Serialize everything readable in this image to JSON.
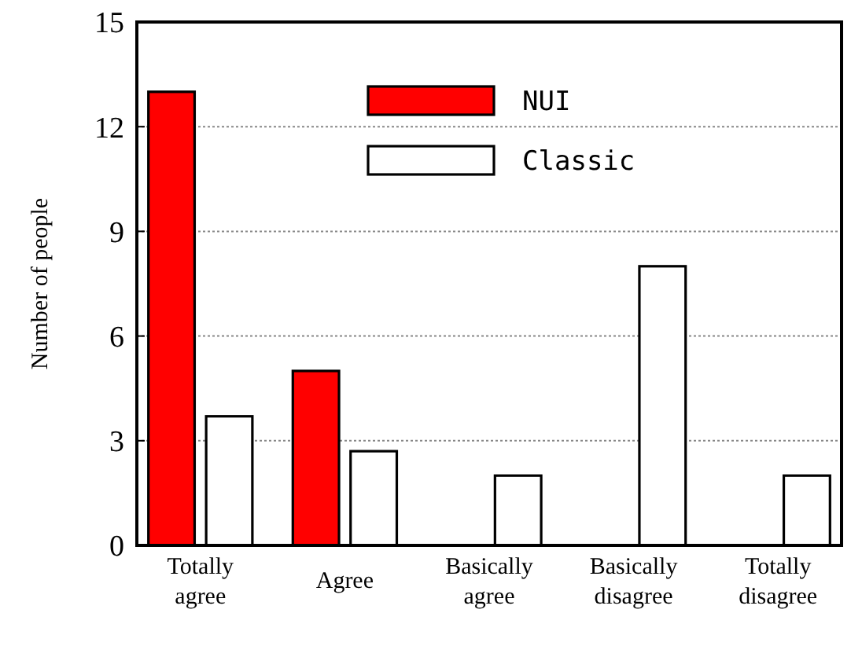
{
  "chart_data": {
    "type": "bar",
    "ylabel": "Number of people",
    "categories": [
      "Totally agree",
      "Agree",
      "Basically agree",
      "Basically disagree",
      "Totally disagree"
    ],
    "series": [
      {
        "name": "NUI",
        "color": "#ff0000",
        "values": [
          13,
          5,
          0,
          0,
          0
        ]
      },
      {
        "name": "Classic",
        "color": "#ffffff",
        "values": [
          3.7,
          2.7,
          2,
          8,
          2
        ]
      }
    ],
    "ylim": [
      0,
      15
    ],
    "yticks": [
      0,
      3,
      6,
      9,
      12,
      15
    ],
    "grid": "y",
    "legend": "top"
  }
}
